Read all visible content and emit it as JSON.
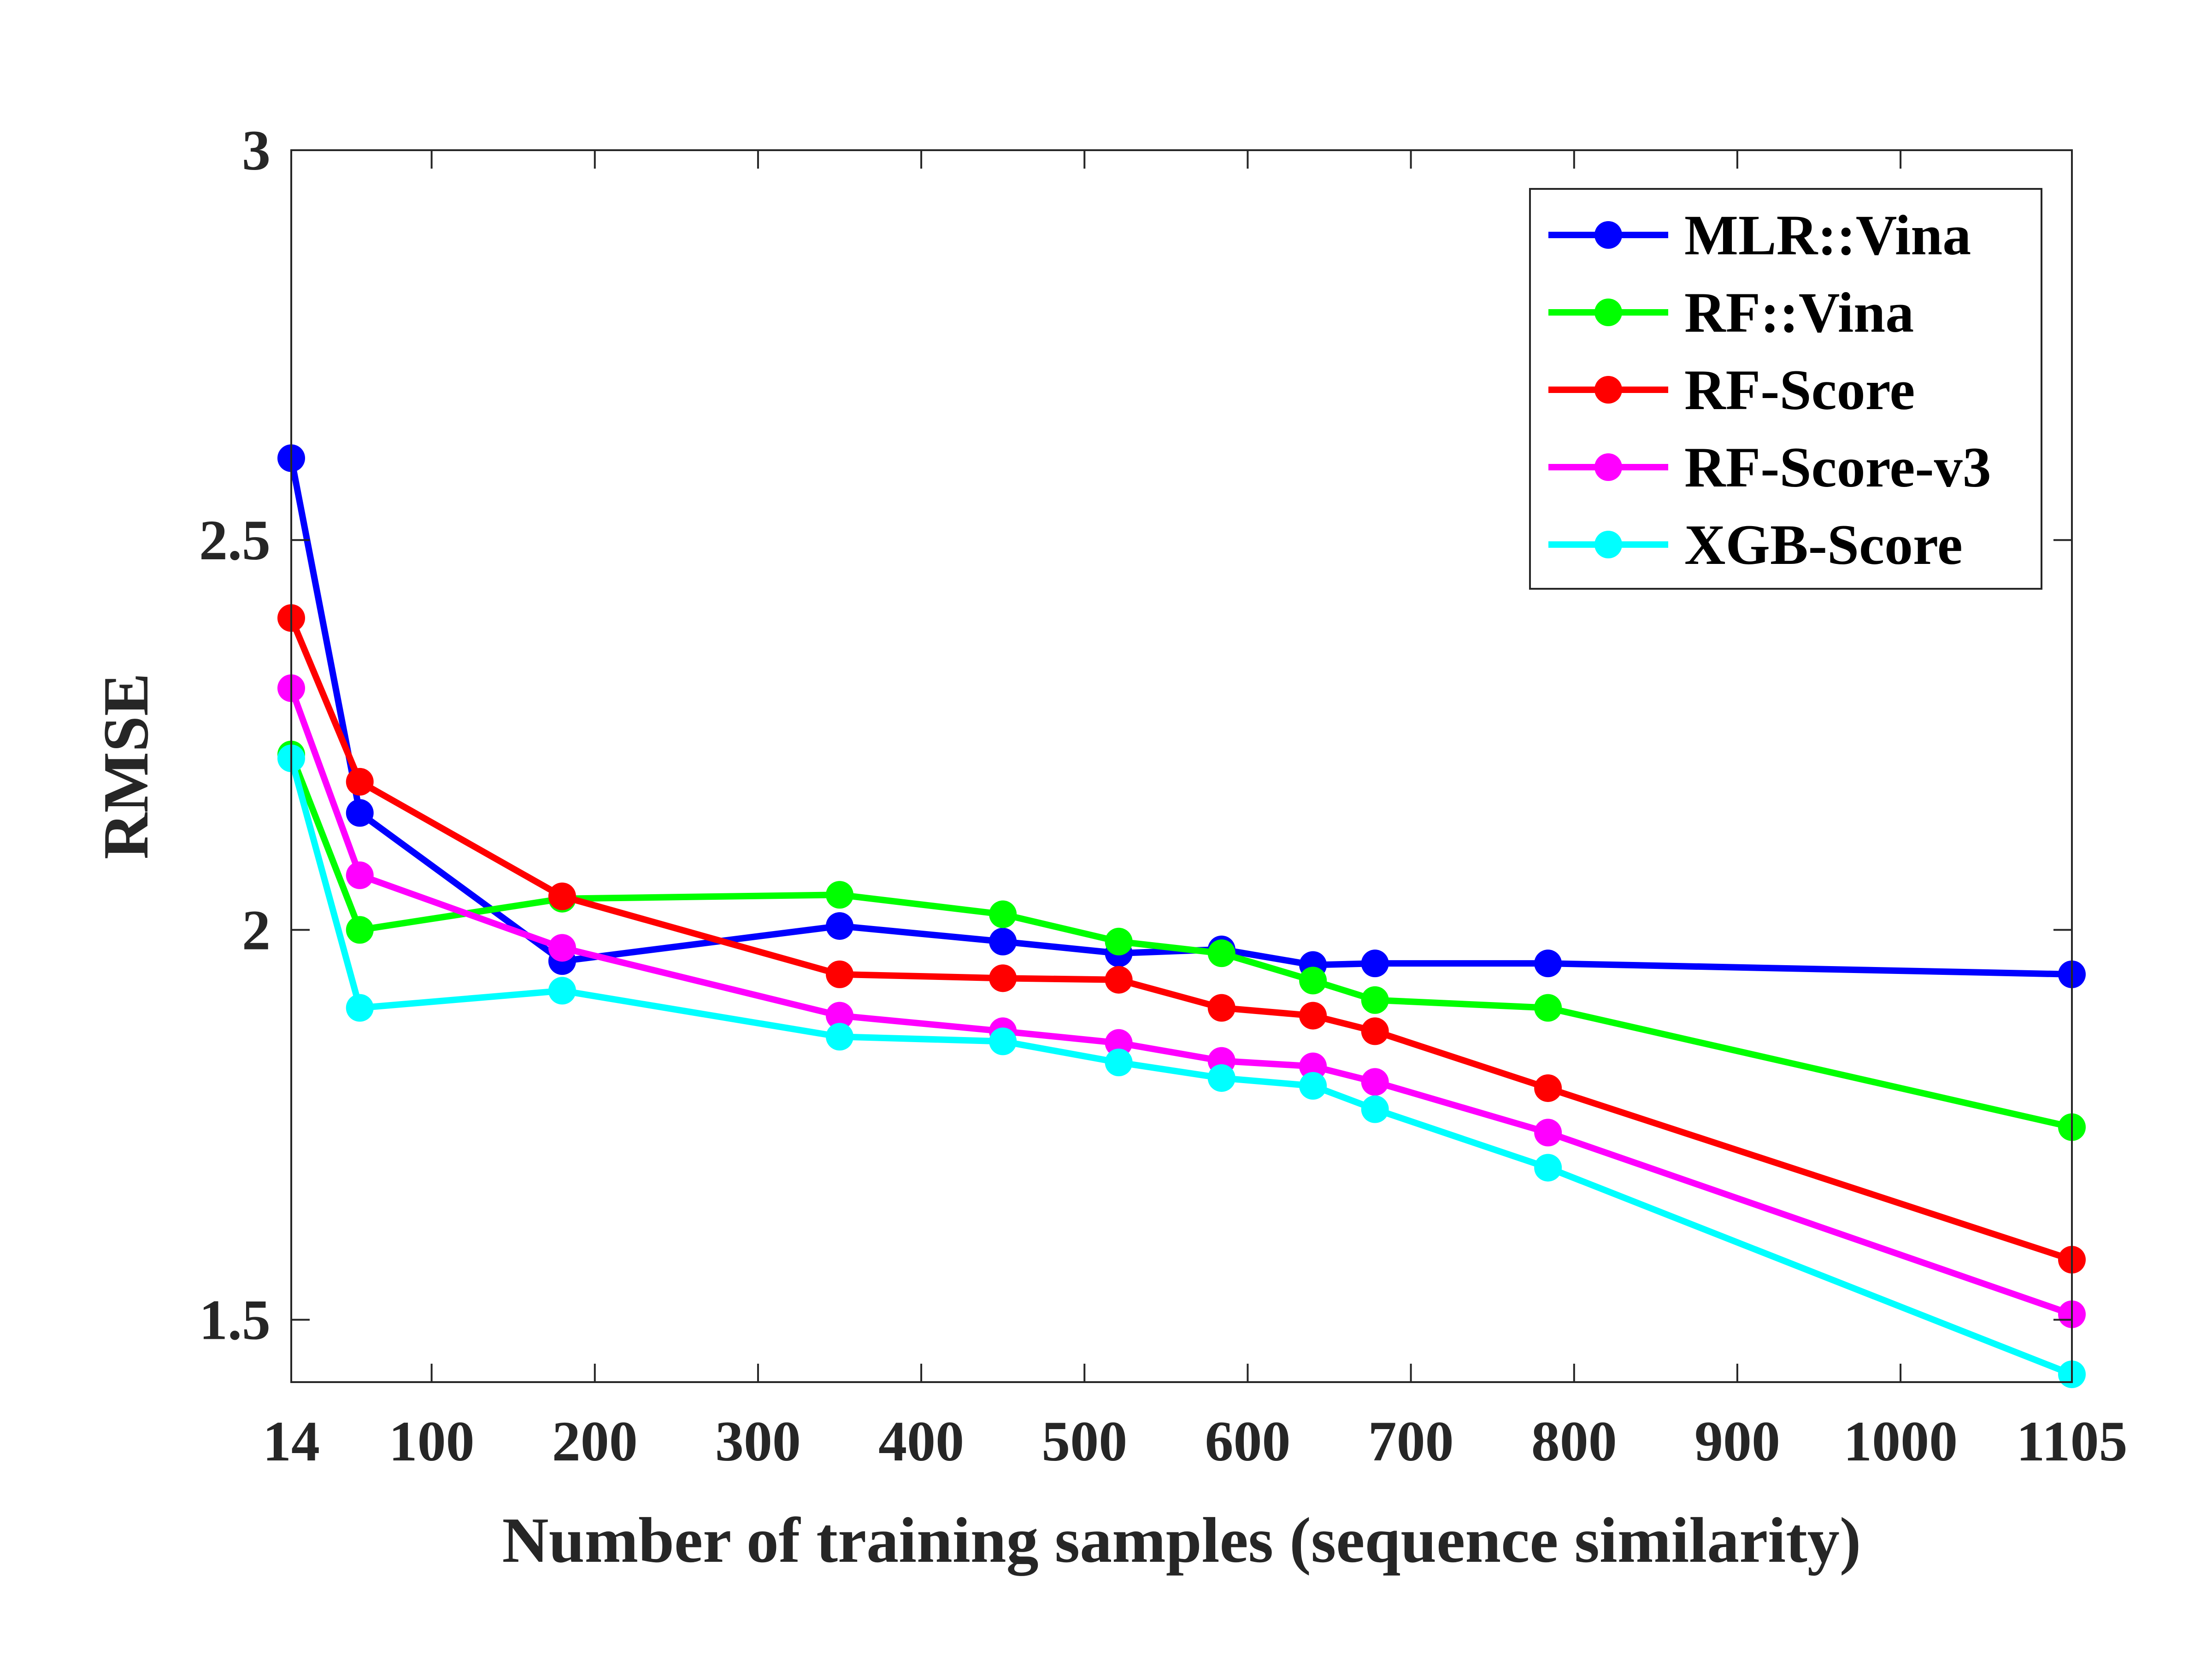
{
  "chart_data": {
    "type": "line",
    "title": "",
    "xlabel": "Number of training samples (sequence similarity)",
    "ylabel": "RMSE",
    "xlim": [
      14,
      1105
    ],
    "ylim": [
      1.42,
      3.0
    ],
    "xticks": [
      14,
      100,
      200,
      300,
      400,
      500,
      600,
      700,
      800,
      900,
      1000,
      1105
    ],
    "xtick_labels": [
      "14",
      "100",
      "200",
      "300",
      "400",
      "500",
      "600",
      "700",
      "800",
      "900",
      "1000",
      "1105"
    ],
    "yticks": [
      1.5,
      2.0,
      2.5,
      3.0
    ],
    "ytick_labels": [
      "1.5",
      "2",
      "2.5",
      "3"
    ],
    "grid": false,
    "legend_position": "top-right",
    "x": [
      14,
      56,
      180,
      350,
      450,
      521,
      584,
      640,
      678,
      784,
      1105
    ],
    "series": [
      {
        "name": "MLR::Vina",
        "color": "#0000ff",
        "values": [
          2.605,
          2.15,
          1.96,
          2.005,
          1.985,
          1.97,
          1.975,
          1.955,
          1.957,
          1.957,
          1.943
        ]
      },
      {
        "name": "RF::Vina",
        "color": "#00ff00",
        "values": [
          2.225,
          2.0,
          2.04,
          2.045,
          2.02,
          1.985,
          1.97,
          1.935,
          1.91,
          1.9,
          1.747
        ]
      },
      {
        "name": "RF-Score",
        "color": "#ff0000",
        "values": [
          2.4,
          2.19,
          2.043,
          1.943,
          1.938,
          1.936,
          1.9,
          1.89,
          1.87,
          1.797,
          1.577
        ]
      },
      {
        "name": "RF-Score-v3",
        "color": "#ff00ff",
        "values": [
          2.31,
          2.07,
          1.977,
          1.89,
          1.87,
          1.855,
          1.832,
          1.825,
          1.805,
          1.74,
          1.507
        ]
      },
      {
        "name": "XGB-Score",
        "color": "#00ffff",
        "values": [
          2.22,
          1.9,
          1.922,
          1.863,
          1.857,
          1.83,
          1.81,
          1.8,
          1.77,
          1.695,
          1.43
        ]
      }
    ]
  }
}
